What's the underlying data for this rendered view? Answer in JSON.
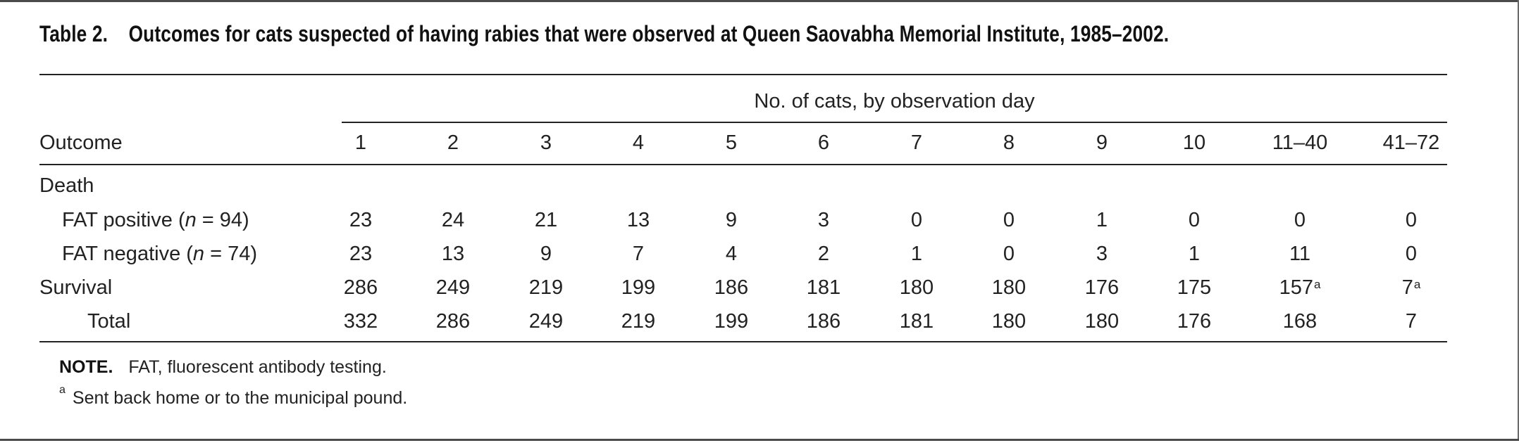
{
  "caption": {
    "label": "Table 2.",
    "title": "Outcomes for cats suspected of having rabies that were observed at Queen Saovabha Memorial Institute, 1985–2002."
  },
  "table": {
    "spanner_header": "No. of cats, by observation day",
    "stub_header": "Outcome",
    "columns": [
      "1",
      "2",
      "3",
      "4",
      "5",
      "6",
      "7",
      "8",
      "9",
      "10",
      "11–40",
      "41–72"
    ],
    "group_label": "Death",
    "rows": [
      {
        "label_prefix": "FAT positive (",
        "label_italic": "n",
        "label_suffix": " = 94)",
        "values": [
          "23",
          "24",
          "21",
          "13",
          "9",
          "3",
          "0",
          "0",
          "1",
          "0",
          "0",
          "0"
        ]
      },
      {
        "label_prefix": "FAT negative (",
        "label_italic": "n",
        "label_suffix": " = 74)",
        "values": [
          "23",
          "13",
          "9",
          "7",
          "4",
          "2",
          "1",
          "0",
          "3",
          "1",
          "11",
          "0"
        ]
      },
      {
        "label": "Survival",
        "values": [
          "286",
          "249",
          "219",
          "199",
          "186",
          "181",
          "180",
          "180",
          "176",
          "175",
          "157",
          "7"
        ],
        "footnote_marks": [
          "",
          "",
          "",
          "",
          "",
          "",
          "",
          "",
          "",
          "",
          "a",
          "a"
        ]
      },
      {
        "label": "Total",
        "values": [
          "332",
          "286",
          "249",
          "219",
          "199",
          "186",
          "181",
          "180",
          "180",
          "176",
          "168",
          "7"
        ]
      }
    ]
  },
  "notes": {
    "note_label": "NOTE.",
    "note_text": "FAT, fluorescent antibody testing.",
    "footnote_mark": "a",
    "footnote_text": "Sent back home or to the municipal pound."
  }
}
